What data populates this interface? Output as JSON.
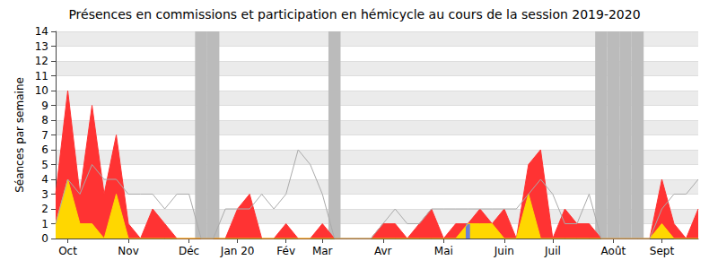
{
  "chart_data": {
    "type": "line",
    "title": "Présences en commissions et participation en hémicycle au cours de la session 2019-2020",
    "y_label": "Séances par semaine",
    "categories": [
      null,
      "Oct",
      null,
      null,
      null,
      null,
      "Nov",
      null,
      null,
      null,
      null,
      "Déc",
      null,
      null,
      null,
      "Jan 20",
      null,
      null,
      null,
      "Fév",
      null,
      null,
      "Mar",
      null,
      null,
      null,
      null,
      "Avr",
      null,
      null,
      null,
      null,
      "Mai",
      null,
      null,
      null,
      null,
      "Juin",
      null,
      null,
      null,
      "Juil",
      null,
      null,
      null,
      null,
      "Août",
      null,
      null,
      null,
      "Sept",
      null,
      null,
      null
    ],
    "series": [
      {
        "type": "bar",
        "color": "#bbbbbb",
        "values": [
          null,
          null,
          null,
          null,
          null,
          null,
          null,
          null,
          null,
          null,
          null,
          null,
          14,
          14,
          null,
          null,
          null,
          null,
          null,
          null,
          null,
          null,
          null,
          14,
          null,
          null,
          null,
          null,
          null,
          null,
          null,
          null,
          null,
          null,
          null,
          null,
          null,
          null,
          null,
          null,
          null,
          null,
          null,
          null,
          null,
          14,
          14,
          14,
          14,
          null,
          null,
          null,
          null,
          null
        ]
      },
      {
        "type": "area",
        "color": "#ff3333",
        "values": [
          3,
          10,
          3,
          9,
          3,
          7,
          1,
          0,
          2,
          1,
          0,
          0,
          0,
          0,
          0,
          2,
          3,
          0,
          0,
          1,
          0,
          0,
          1,
          0,
          0,
          0,
          0,
          1,
          1,
          0,
          1,
          2,
          0,
          1,
          1,
          2,
          1,
          2,
          0,
          5,
          6,
          0,
          2,
          1,
          1,
          0,
          0,
          0,
          0,
          0,
          4,
          1,
          0,
          2
        ]
      },
      {
        "type": "area",
        "color": "#ffd700",
        "values": [
          1,
          4,
          1,
          1,
          0,
          3,
          0,
          0,
          0,
          0,
          0,
          0,
          0,
          0,
          0,
          0,
          0,
          0,
          0,
          0,
          0,
          0,
          0,
          0,
          0,
          0,
          0,
          0,
          0,
          0,
          0,
          0,
          0,
          0,
          1,
          1,
          1,
          0,
          0,
          3,
          0,
          0,
          0,
          0,
          0,
          0,
          0,
          0,
          0,
          0,
          1,
          0,
          0,
          0
        ]
      },
      {
        "type": "bar",
        "color": "#6a7fdb",
        "values": [
          null,
          null,
          null,
          null,
          null,
          null,
          null,
          null,
          null,
          null,
          null,
          null,
          null,
          null,
          null,
          null,
          null,
          null,
          null,
          null,
          null,
          null,
          null,
          null,
          null,
          null,
          null,
          null,
          null,
          null,
          null,
          null,
          null,
          null,
          1,
          null,
          null,
          null,
          null,
          null,
          null,
          null,
          null,
          null,
          null,
          null,
          null,
          null,
          null,
          null,
          null,
          null,
          null,
          null
        ]
      },
      {
        "type": "line",
        "color": "#aaaaaa",
        "values": [
          1,
          4,
          3,
          5,
          4,
          4,
          3,
          3,
          3,
          2,
          3,
          3,
          0,
          0,
          2,
          2,
          2,
          3,
          2,
          3,
          6,
          5,
          3,
          0,
          0,
          0,
          0,
          1,
          2,
          1,
          1,
          2,
          2,
          2,
          2,
          2,
          2,
          2,
          2,
          3,
          4,
          3,
          1,
          1,
          3,
          0,
          0,
          0,
          0,
          0,
          2,
          3,
          3,
          4
        ]
      }
    ],
    "ylim": [
      0,
      14
    ],
    "yticks": [
      0,
      1,
      2,
      3,
      4,
      5,
      6,
      7,
      8,
      9,
      10,
      11,
      12,
      13,
      14
    ],
    "grid": true
  }
}
